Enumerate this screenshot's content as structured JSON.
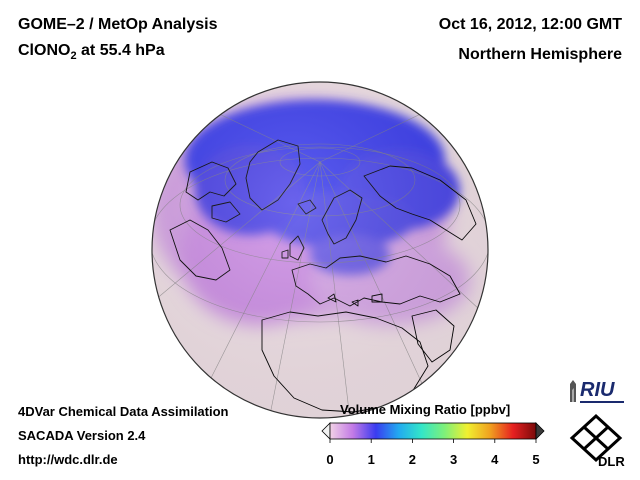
{
  "header": {
    "title_line1": "GOME–2 / MetOp Analysis",
    "species_prefix": "ClONO",
    "species_subscript": "2",
    "species_suffix": " at 55.4 hPa",
    "datetime": "Oct 16, 2012, 12:00 GMT",
    "region": "Northern Hemisphere"
  },
  "footer": {
    "line1": "4DVar Chemical Data Assimilation",
    "line2": "SACADA Version 2.4",
    "line3": "http://wdc.dlr.de"
  },
  "colorbar": {
    "title": "Volume Mixing Ratio [ppbv]",
    "ticks": [
      "0",
      "1",
      "2",
      "3",
      "4",
      "5"
    ],
    "min": 0,
    "max": 5,
    "gradient_colors": [
      "#f2d2e6",
      "#c27ae6",
      "#3a3cf0",
      "#22aaf0",
      "#33e6c8",
      "#7ef07a",
      "#f0f030",
      "#f0a020",
      "#e62020",
      "#7a0a0a"
    ]
  },
  "logos": {
    "riu": "RIU",
    "dlr": "DLR"
  },
  "map": {
    "projection": "orthographic",
    "background_color": "#f4e4ea",
    "low_color": "#3a3cf0",
    "mid_color": "#c27ae6",
    "coast_color": "#000000"
  }
}
